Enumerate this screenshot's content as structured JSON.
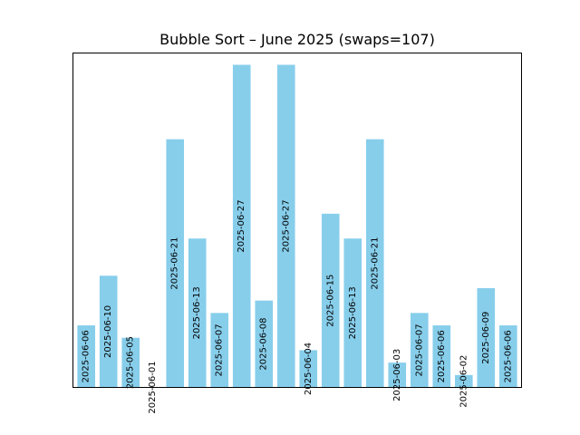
{
  "chart_data": {
    "type": "bar",
    "title": "Bubble Sort – June 2025 (swaps=107)",
    "xlabel": "",
    "ylabel": "",
    "grid": false,
    "bar_color": "#87ceeb",
    "categories": [
      "2025-06-06",
      "2025-06-10",
      "2025-06-05",
      "2025-06-01",
      "2025-06-21",
      "2025-06-13",
      "2025-06-07",
      "2025-06-27",
      "2025-06-08",
      "2025-06-27",
      "2025-06-04",
      "2025-06-15",
      "2025-06-13",
      "2025-06-21",
      "2025-06-03",
      "2025-06-07",
      "2025-06-06",
      "2025-06-02",
      "2025-06-09",
      "2025-06-06"
    ],
    "values": [
      6,
      10,
      5,
      1,
      21,
      13,
      7,
      27,
      8,
      27,
      4,
      15,
      13,
      21,
      3,
      7,
      6,
      2,
      9,
      6
    ],
    "ylim": [
      1,
      27.95
    ]
  }
}
